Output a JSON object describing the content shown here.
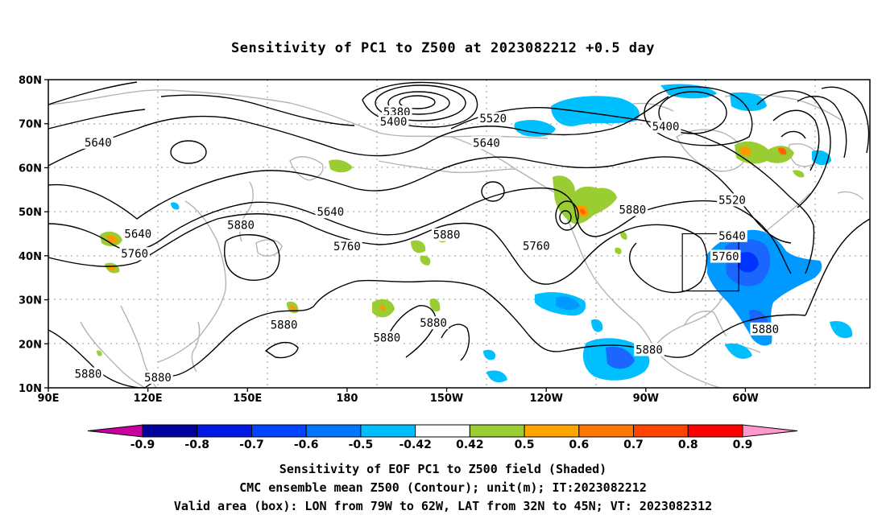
{
  "title": "Sensitivity of PC1 to Z500 at 2023082212 +0.5 day",
  "map": {
    "lat_labels": [
      {
        "text": "80N",
        "lat": 80
      },
      {
        "text": "70N",
        "lat": 70
      },
      {
        "text": "60N",
        "lat": 60
      },
      {
        "text": "50N",
        "lat": 50
      },
      {
        "text": "40N",
        "lat": 40
      },
      {
        "text": "30N",
        "lat": 30
      },
      {
        "text": "20N",
        "lat": 20
      },
      {
        "text": "10N",
        "lat": 10
      }
    ],
    "lon_labels": [
      {
        "text": "90E",
        "lon": 90
      },
      {
        "text": "120E",
        "lon": 120
      },
      {
        "text": "150E",
        "lon": 150
      },
      {
        "text": "180",
        "lon": 180
      },
      {
        "text": "150W",
        "lon": 210
      },
      {
        "text": "120W",
        "lon": 240
      },
      {
        "text": "90W",
        "lon": 270
      },
      {
        "text": "60W",
        "lon": 300
      }
    ],
    "contour_labels": [
      {
        "text": "5380",
        "lon": 195,
        "lat": 72.5
      },
      {
        "text": "5400",
        "lon": 194,
        "lat": 70.3
      },
      {
        "text": "5520",
        "lon": 224,
        "lat": 71.0
      },
      {
        "text": "5640",
        "lon": 222,
        "lat": 65.5
      },
      {
        "text": "5400",
        "lon": 276,
        "lat": 69.2
      },
      {
        "text": "5520",
        "lon": 296,
        "lat": 52.5
      },
      {
        "text": "5640",
        "lon": 105,
        "lat": 65.6
      },
      {
        "text": "5640",
        "lon": 117,
        "lat": 44.8
      },
      {
        "text": "5640",
        "lon": 175,
        "lat": 49.8
      },
      {
        "text": "5760",
        "lon": 116,
        "lat": 40.3
      },
      {
        "text": "5880",
        "lon": 148,
        "lat": 46.8
      },
      {
        "text": "5760",
        "lon": 180,
        "lat": 42.0
      },
      {
        "text": "5880",
        "lon": 210,
        "lat": 44.6
      },
      {
        "text": "5760",
        "lon": 237,
        "lat": 42.1
      },
      {
        "text": "5880",
        "lon": 266,
        "lat": 50.3
      },
      {
        "text": "5640",
        "lon": 296,
        "lat": 44.4
      },
      {
        "text": "5760",
        "lon": 294,
        "lat": 39.7
      },
      {
        "text": "5880",
        "lon": 161,
        "lat": 24.2
      },
      {
        "text": "5880",
        "lon": 192,
        "lat": 21.2
      },
      {
        "text": "5880",
        "lon": 206,
        "lat": 24.6
      },
      {
        "text": "5880",
        "lon": 271,
        "lat": 18.5
      },
      {
        "text": "5880",
        "lon": 102,
        "lat": 13.0
      },
      {
        "text": "5880",
        "lon": 123,
        "lat": 12.2
      },
      {
        "text": "5880",
        "lon": 306,
        "lat": 23.2
      }
    ],
    "valid_box": {
      "lon_min": 281,
      "lon_max": 298,
      "lat_min": 32,
      "lat_max": 45
    },
    "shade_colors": {
      "pos_050": "#9acd32",
      "pos_060": "#ff9900",
      "pos_070": "#ff6600",
      "neg_042": "#00bfff",
      "neg_050": "#0099ff",
      "neg_060": "#1a66ff",
      "neg_070": "#0033ff"
    }
  },
  "colorbar": {
    "ticks": [
      "-0.9",
      "-0.8",
      "-0.7",
      "-0.6",
      "-0.5",
      "-0.42",
      "0.42",
      "0.5",
      "0.6",
      "0.7",
      "0.8",
      "0.9"
    ],
    "colors": [
      "#00009e",
      "#0019e6",
      "#0044ff",
      "#0077ff",
      "#00bfff",
      "#ffffff",
      "#9acd32",
      "#ffa500",
      "#ff7700",
      "#ff4400",
      "#ff0000"
    ],
    "low_end_color": "#c800a0",
    "high_end_color": "#ff99cc"
  },
  "captions": {
    "line1": "Sensitivity of EOF PC1 to Z500 field (Shaded)",
    "line2": "CMC ensemble mean Z500 (Contour); unit(m); IT:2023082212",
    "line3": "Valid area (box): LON from 79W to 62W, LAT from 32N to 45N; VT: 2023082312"
  }
}
